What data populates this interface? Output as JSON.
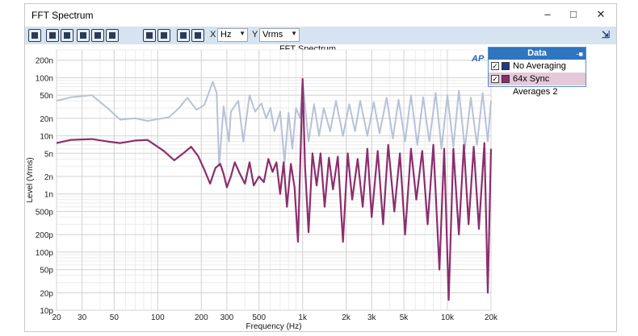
{
  "window": {
    "title": "FFT Spectrum",
    "min_icon": "minimize-icon",
    "max_icon": "maximize-icon",
    "close_icon": "close-icon"
  },
  "toolbar": {
    "x_label": "X",
    "x_unit": "Hz",
    "y_label": "Y",
    "y_unit": "Vrms"
  },
  "legend": {
    "title": "Data",
    "items": [
      {
        "label": "No Averaging",
        "color": "#1f3a8a",
        "checked": true
      },
      {
        "label": "64x Sync Averages 2",
        "color": "#8b2e6e",
        "checked": true
      }
    ]
  },
  "chart_data": {
    "type": "line",
    "title": "FFT Spectrum",
    "xlabel": "Frequency (Hz)",
    "ylabel": "Level (Vrms)",
    "x_scale": "log",
    "y_scale": "log",
    "xlim": [
      20,
      20000
    ],
    "ylim": [
      1e-11,
      3e-07
    ],
    "grid": true,
    "legend_position": "right",
    "x_ticks": [
      {
        "v": 20,
        "label": "20"
      },
      {
        "v": 30,
        "label": "30"
      },
      {
        "v": 50,
        "label": "50"
      },
      {
        "v": 100,
        "label": "100"
      },
      {
        "v": 200,
        "label": "200"
      },
      {
        "v": 300,
        "label": "300"
      },
      {
        "v": 500,
        "label": "500"
      },
      {
        "v": 1000,
        "label": "1k"
      },
      {
        "v": 2000,
        "label": "2k"
      },
      {
        "v": 3000,
        "label": "3k"
      },
      {
        "v": 5000,
        "label": "5k"
      },
      {
        "v": 10000,
        "label": "10k"
      },
      {
        "v": 20000,
        "label": "20k"
      }
    ],
    "y_ticks": [
      {
        "v": 2e-07,
        "label": "200n"
      },
      {
        "v": 1e-07,
        "label": "100n"
      },
      {
        "v": 5e-08,
        "label": "50n"
      },
      {
        "v": 2e-08,
        "label": "20n"
      },
      {
        "v": 1e-08,
        "label": "10n"
      },
      {
        "v": 5e-09,
        "label": "5n"
      },
      {
        "v": 2e-09,
        "label": "2n"
      },
      {
        "v": 1e-09,
        "label": "1n"
      },
      {
        "v": 5e-10,
        "label": "500p"
      },
      {
        "v": 2e-10,
        "label": "200p"
      },
      {
        "v": 1e-10,
        "label": "100p"
      },
      {
        "v": 5e-11,
        "label": "50p"
      },
      {
        "v": 2e-11,
        "label": "20p"
      },
      {
        "v": 1e-11,
        "label": "10p"
      }
    ],
    "series": [
      {
        "name": "No Averaging",
        "color": "#b7c1d8",
        "points": [
          [
            20,
            4e-08
          ],
          [
            25,
            4.6e-08
          ],
          [
            35,
            5e-08
          ],
          [
            45,
            3e-08
          ],
          [
            55,
            1.9e-08
          ],
          [
            70,
            2e-08
          ],
          [
            85,
            1.8e-08
          ],
          [
            120,
            2.1e-08
          ],
          [
            140,
            3e-08
          ],
          [
            160,
            4.5e-08
          ],
          [
            185,
            2.8e-08
          ],
          [
            210,
            3.4e-08
          ],
          [
            240,
            8.5e-08
          ],
          [
            255,
            5.5e-08
          ],
          [
            265,
            3e-09
          ],
          [
            285,
            3.2e-08
          ],
          [
            310,
            8e-09
          ],
          [
            320,
            2.6e-08
          ],
          [
            360,
            4e-08
          ],
          [
            390,
            8e-09
          ],
          [
            430,
            5e-08
          ],
          [
            470,
            2.6e-08
          ],
          [
            520,
            3.6e-08
          ],
          [
            560,
            2e-08
          ],
          [
            600,
            3e-08
          ],
          [
            640,
            1.2e-08
          ],
          [
            700,
            2.6e-08
          ],
          [
            750,
            3.5e-09
          ],
          [
            800,
            2.5e-08
          ],
          [
            850,
            6e-09
          ],
          [
            900,
            3e-08
          ],
          [
            960,
            2e-08
          ],
          [
            1000,
            9e-08
          ],
          [
            1050,
            2.5e-08
          ],
          [
            1100,
            8e-09
          ],
          [
            1200,
            3.5e-08
          ],
          [
            1300,
            1e-08
          ],
          [
            1400,
            3e-08
          ],
          [
            1550,
            1.2e-08
          ],
          [
            1700,
            4e-08
          ],
          [
            1900,
            1e-08
          ],
          [
            2100,
            3.5e-08
          ],
          [
            2300,
            1.2e-08
          ],
          [
            2500,
            4e-08
          ],
          [
            2800,
            1e-08
          ],
          [
            3100,
            3.8e-08
          ],
          [
            3400,
            1.1e-08
          ],
          [
            3800,
            4.5e-08
          ],
          [
            4200,
            9e-09
          ],
          [
            4600,
            4.2e-08
          ],
          [
            5100,
            8e-09
          ],
          [
            5600,
            5e-08
          ],
          [
            6200,
            7e-09
          ],
          [
            6800,
            4.6e-08
          ],
          [
            7500,
            8e-09
          ],
          [
            8300,
            5.5e-08
          ],
          [
            9100,
            6e-09
          ],
          [
            10000,
            5e-08
          ],
          [
            11000,
            6.5e-09
          ],
          [
            12000,
            6e-08
          ],
          [
            13200,
            6e-09
          ],
          [
            14500,
            4.5e-08
          ],
          [
            16000,
            7e-09
          ],
          [
            17500,
            5.5e-08
          ],
          [
            19000,
            8e-09
          ],
          [
            20000,
            4e-08
          ]
        ]
      },
      {
        "name": "64x Sync Averages 2",
        "color": "#8b2e6e",
        "points": [
          [
            20,
            7.5e-09
          ],
          [
            25,
            8.5e-09
          ],
          [
            35,
            8.8e-09
          ],
          [
            45,
            8e-09
          ],
          [
            55,
            7.5e-09
          ],
          [
            70,
            8.3e-09
          ],
          [
            85,
            8.5e-09
          ],
          [
            110,
            5.5e-09
          ],
          [
            130,
            3.8e-09
          ],
          [
            150,
            5e-09
          ],
          [
            170,
            6.5e-09
          ],
          [
            190,
            4.5e-09
          ],
          [
            210,
            2.6e-09
          ],
          [
            230,
            1.5e-09
          ],
          [
            250,
            2.8e-09
          ],
          [
            270,
            3.3e-09
          ],
          [
            285,
            2.2e-09
          ],
          [
            300,
            1.3e-09
          ],
          [
            320,
            2e-09
          ],
          [
            340,
            3.5e-09
          ],
          [
            370,
            2.2e-09
          ],
          [
            400,
            1.5e-09
          ],
          [
            430,
            3.5e-09
          ],
          [
            460,
            1.4e-09
          ],
          [
            500,
            2e-09
          ],
          [
            540,
            1.6e-09
          ],
          [
            580,
            4e-09
          ],
          [
            620,
            2.4e-09
          ],
          [
            660,
            3.5e-09
          ],
          [
            700,
            1e-09
          ],
          [
            740,
            3.5e-09
          ],
          [
            780,
            6e-10
          ],
          [
            830,
            3.3e-09
          ],
          [
            880,
            1.3e-09
          ],
          [
            930,
            1.5e-10
          ],
          [
            970,
            6e-09
          ],
          [
            1000,
            9.5e-08
          ],
          [
            1040,
            3e-09
          ],
          [
            1100,
            2.2e-10
          ],
          [
            1170,
            5e-09
          ],
          [
            1250,
            1.4e-09
          ],
          [
            1330,
            5e-09
          ],
          [
            1420,
            6e-10
          ],
          [
            1520,
            4.2e-09
          ],
          [
            1620,
            1.2e-09
          ],
          [
            1750,
            4.4e-09
          ],
          [
            1900,
            1.5e-10
          ],
          [
            2050,
            5e-09
          ],
          [
            2200,
            8e-10
          ],
          [
            2400,
            4e-09
          ],
          [
            2600,
            6e-10
          ],
          [
            2800,
            6e-09
          ],
          [
            3000,
            4e-10
          ],
          [
            3300,
            5.5e-09
          ],
          [
            3600,
            3e-10
          ],
          [
            3900,
            7e-09
          ],
          [
            4300,
            5e-10
          ],
          [
            4700,
            5e-09
          ],
          [
            5100,
            2e-10
          ],
          [
            5600,
            6e-09
          ],
          [
            6100,
            8e-10
          ],
          [
            6700,
            5.5e-09
          ],
          [
            7300,
            3e-10
          ],
          [
            8000,
            7e-09
          ],
          [
            8800,
            5e-11
          ],
          [
            9500,
            6e-09
          ],
          [
            10200,
            1.5e-11
          ],
          [
            11000,
            6e-09
          ],
          [
            12000,
            2e-10
          ],
          [
            13000,
            7e-09
          ],
          [
            14000,
            3e-10
          ],
          [
            15200,
            6.5e-09
          ],
          [
            16500,
            2.5e-10
          ],
          [
            18000,
            7.5e-09
          ],
          [
            19000,
            2e-11
          ],
          [
            20000,
            6e-09
          ]
        ]
      }
    ]
  }
}
